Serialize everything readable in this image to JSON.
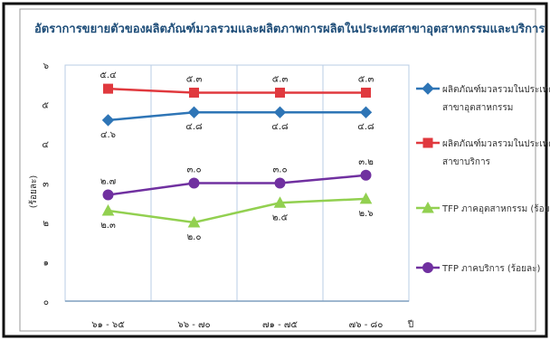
{
  "chart_data": {
    "type": "line",
    "title": "อัตราการขยายตัวของผลิตภัณฑ์มวลรวมและผลิตภาพการผลิตในประเทศสาขาอุตสาหกรรมและบริการ (ร้อยละ)",
    "ylabel": "(ร้อยละ)",
    "xlabel": "ปี",
    "ylim": [
      0,
      6
    ],
    "y_ticks": [
      "๐",
      "๑",
      "๒",
      "๓",
      "๔",
      "๕",
      "๖"
    ],
    "categories": [
      "๖๑ - ๖๕",
      "๖๖ - ๗๐",
      "๗๑ - ๗๕",
      "๗๖ - ๘๐"
    ],
    "grid": "vertical",
    "legend_position": "right",
    "series": [
      {
        "name_lines": [
          "ผลิตภัณฑ์มวลรวมในประเทศใน",
          "สาขาอุตสาหกรรม"
        ],
        "values": [
          4.6,
          4.8,
          4.8,
          4.8
        ],
        "labels": [
          "๔.๖",
          "๔.๘",
          "๔.๘",
          "๔.๘"
        ],
        "color": "#2e75b6",
        "marker": "diamond",
        "label_side": [
          "below",
          "below",
          "below",
          "below"
        ]
      },
      {
        "name_lines": [
          "ผลิตภัณฑ์มวลรวมในประเทศใน",
          "สาขาบริการ"
        ],
        "values": [
          5.4,
          5.3,
          5.3,
          5.3
        ],
        "labels": [
          "๕.๔",
          "๕.๓",
          "๕.๓",
          "๕.๓"
        ],
        "color": "#e0393e",
        "marker": "square",
        "label_side": [
          "above",
          "above",
          "above",
          "above"
        ]
      },
      {
        "name_lines": [
          "TFP ภาคอุตสาหกรรม (ร้อยละ)"
        ],
        "values": [
          2.3,
          2.0,
          2.5,
          2.6
        ],
        "labels": [
          "๒.๓",
          "๒.๐",
          "๒.๕",
          "๒.๖"
        ],
        "color": "#92d050",
        "marker": "triangle",
        "label_side": [
          "below",
          "below",
          "below",
          "below"
        ]
      },
      {
        "name_lines": [
          "TFP ภาคบริการ (ร้อยละ)"
        ],
        "values": [
          2.7,
          3.0,
          3.0,
          3.2
        ],
        "labels": [
          "๒.๗",
          "๓.๐",
          "๓.๐",
          "๓.๒"
        ],
        "color": "#7030a0",
        "marker": "circle",
        "label_side": [
          "above",
          "above",
          "above",
          "above"
        ]
      }
    ]
  }
}
